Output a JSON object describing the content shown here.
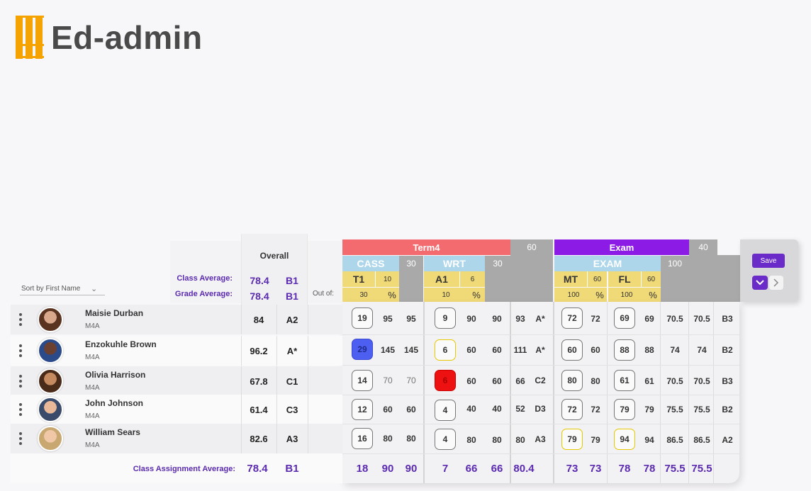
{
  "app": {
    "logo_text": "Ed-admin"
  },
  "sort": {
    "label": "Sort by First Name"
  },
  "overall_label": "Overall",
  "class_average": {
    "label": "Class  Average:",
    "score": "78.4",
    "grade": "B1"
  },
  "grade_average": {
    "label": "Grade Average:",
    "score": "78.4",
    "grade": "B1"
  },
  "out_of_label": "Out of:",
  "headers": {
    "term4": {
      "label": "Term4",
      "weight": "60"
    },
    "exam": {
      "label": "Exam",
      "weight": "40"
    },
    "cass": {
      "label": "CASS",
      "weight": "30"
    },
    "wrt": {
      "label": "WRT",
      "weight": "30"
    },
    "exam_sub": {
      "label": "EXAM",
      "weight": "100"
    },
    "t1": {
      "label": "T1",
      "sub": "10",
      "outof": "30",
      "pct": "%"
    },
    "a1": {
      "label": "A1",
      "sub": "6",
      "outof": "10",
      "pct": "%"
    },
    "mt": {
      "label": "MT",
      "sub": "60",
      "outof": "100",
      "pct": "%"
    },
    "fl": {
      "label": "FL",
      "sub": "60",
      "outof": "100",
      "pct": "%"
    }
  },
  "students": [
    {
      "name": "Maisie Durban",
      "class": "M4A",
      "overall": "84",
      "grade": "A2",
      "t1": "19",
      "t1a": "95",
      "t1b": "95",
      "a1": "9",
      "a1a": "90",
      "a1b": "90",
      "term": "93",
      "termg": "A*",
      "mt": "72",
      "mta": "72",
      "fl": "69",
      "fla": "69",
      "ex": "70.5",
      "fin": "70.5",
      "fing": "B3"
    },
    {
      "name": "Enzokuhle Brown",
      "class": "M4A",
      "overall": "96.2",
      "grade": "A*",
      "t1": "29",
      "t1a": "145",
      "t1b": "145",
      "a1": "6",
      "a1a": "60",
      "a1b": "60",
      "term": "111",
      "termg": "A*",
      "mt": "60",
      "mta": "60",
      "fl": "88",
      "fla": "88",
      "ex": "74",
      "fin": "74",
      "fing": "B2"
    },
    {
      "name": "Olivia Harrison",
      "class": "M4A",
      "overall": "67.8",
      "grade": "C1",
      "t1": "14",
      "t1a": "70",
      "t1b": "70",
      "a1": "6",
      "a1a": "60",
      "a1b": "60",
      "term": "66",
      "termg": "C2",
      "mt": "80",
      "mta": "80",
      "fl": "61",
      "fla": "61",
      "ex": "70.5",
      "fin": "70.5",
      "fing": "B3"
    },
    {
      "name": "John Johnson",
      "class": "M4A",
      "overall": "61.4",
      "grade": "C3",
      "t1": "12",
      "t1a": "60",
      "t1b": "60",
      "a1": "4",
      "a1a": "40",
      "a1b": "40",
      "term": "52",
      "termg": "D3",
      "mt": "72",
      "mta": "72",
      "fl": "79",
      "fla": "79",
      "ex": "75.5",
      "fin": "75.5",
      "fing": "B2"
    },
    {
      "name": "William Sears",
      "class": "M4A",
      "overall": "82.6",
      "grade": "A3",
      "t1": "16",
      "t1a": "80",
      "t1b": "80",
      "a1": "4",
      "a1a": "80",
      "a1b": "80",
      "term": "80",
      "termg": "A3",
      "mt": "79",
      "mta": "79",
      "fl": "94",
      "fla": "94",
      "ex": "86.5",
      "fin": "86.5",
      "fing": "A2"
    }
  ],
  "assignment_average": {
    "label": "Class Assignment Average:",
    "score": "78.4",
    "grade": "B1",
    "t1": "18",
    "t1a": "90",
    "t1b": "90",
    "a1": "7",
    "a1a": "66",
    "a1b": "66",
    "term": "80.4",
    "mt": "73",
    "mta": "73",
    "fl": "78",
    "fla": "78",
    "ex": "75.5",
    "fin": "75.5"
  },
  "controls": {
    "save_label": "Save",
    "down_icon": "chevron-down-icon",
    "next_icon": "chevron-right-icon"
  },
  "colors": {
    "accent": "#6b2bc9",
    "term": "#f36b6f",
    "exam": "#8c1be6",
    "header_blue": "#aed6ea",
    "header_yellow": "#f0d977"
  }
}
